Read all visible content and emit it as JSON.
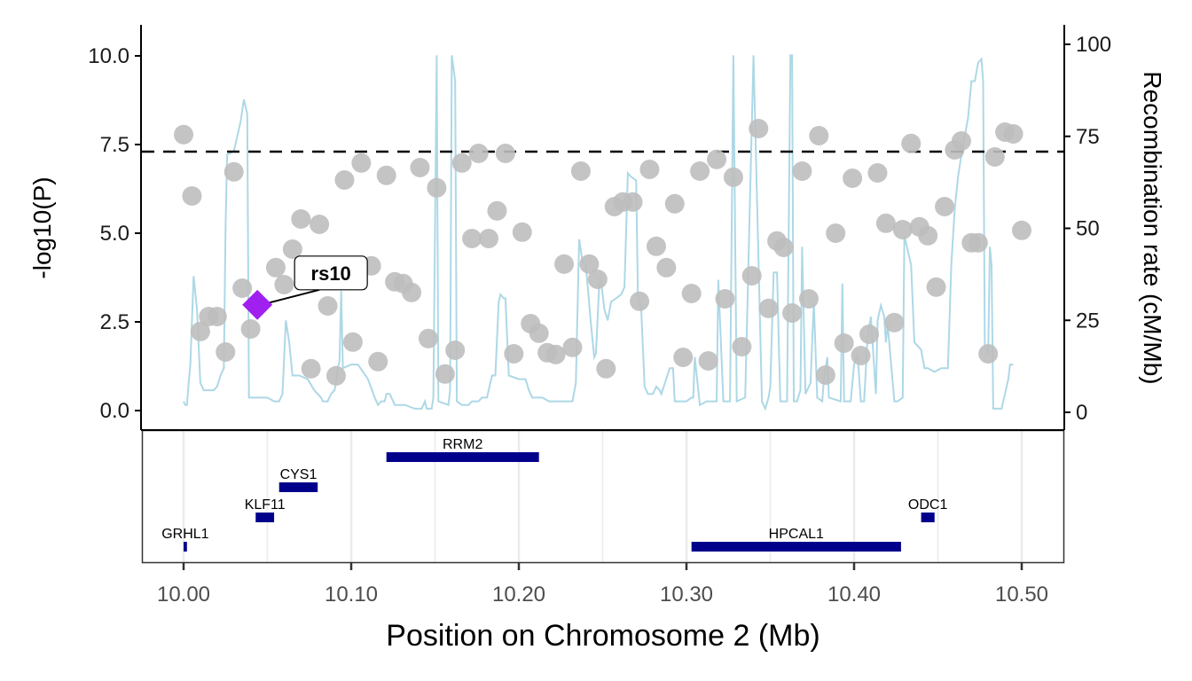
{
  "chart_data": {
    "type": "scatter",
    "title": "",
    "xlabel": "Position on Chromosome 2 (Mb)",
    "ylabel": "-log10(P)",
    "y2label": "Recombination rate (cM/Mb)",
    "xlim": [
      9.975,
      10.525
    ],
    "ylim": [
      -0.45,
      10.85
    ],
    "y2lim": [
      -4.5,
      104.5
    ],
    "x_ticks": [
      10.0,
      10.1,
      10.2,
      10.3,
      10.4,
      10.5
    ],
    "x_tick_labels": [
      "10.00",
      "10.10",
      "10.20",
      "10.30",
      "10.40",
      "10.50"
    ],
    "y_ticks": [
      0.0,
      2.5,
      5.0,
      7.5,
      10.0
    ],
    "y_tick_labels": [
      "0.0",
      "2.5",
      "5.0",
      "7.5",
      "10.0"
    ],
    "y2_ticks": [
      0,
      25,
      50,
      75,
      100
    ],
    "y2_tick_labels": [
      "0",
      "25",
      "50",
      "75",
      "100"
    ],
    "significance_threshold": 7.3,
    "colors": {
      "points": "#bebebe",
      "lead_snp": "#a020f0",
      "recombination": "#add8e6",
      "genes": "#00008b",
      "threshold": "#000000"
    },
    "lead_snp": {
      "label": "rs10",
      "position": 10.044,
      "logp": 2.98
    },
    "points": [
      [
        10.0,
        7.78
      ],
      [
        10.005,
        6.05
      ],
      [
        10.01,
        2.23
      ],
      [
        10.015,
        2.65
      ],
      [
        10.02,
        2.65
      ],
      [
        10.025,
        1.65
      ],
      [
        10.03,
        6.73
      ],
      [
        10.035,
        3.45
      ],
      [
        10.04,
        2.3
      ],
      [
        10.055,
        4.03
      ],
      [
        10.06,
        3.55
      ],
      [
        10.065,
        4.55
      ],
      [
        10.07,
        5.4
      ],
      [
        10.076,
        1.18
      ],
      [
        10.081,
        5.25
      ],
      [
        10.086,
        2.95
      ],
      [
        10.091,
        0.98
      ],
      [
        10.096,
        6.5
      ],
      [
        10.101,
        1.93
      ],
      [
        10.106,
        6.98
      ],
      [
        10.112,
        4.08
      ],
      [
        10.116,
        1.38
      ],
      [
        10.121,
        6.63
      ],
      [
        10.126,
        3.63
      ],
      [
        10.131,
        3.58
      ],
      [
        10.136,
        3.33
      ],
      [
        10.141,
        6.85
      ],
      [
        10.146,
        2.03
      ],
      [
        10.151,
        6.28
      ],
      [
        10.156,
        1.03
      ],
      [
        10.162,
        1.7
      ],
      [
        10.166,
        6.98
      ],
      [
        10.172,
        4.85
      ],
      [
        10.176,
        7.25
      ],
      [
        10.182,
        4.85
      ],
      [
        10.187,
        5.63
      ],
      [
        10.192,
        7.25
      ],
      [
        10.197,
        1.6
      ],
      [
        10.202,
        5.03
      ],
      [
        10.207,
        2.45
      ],
      [
        10.212,
        2.18
      ],
      [
        10.217,
        1.63
      ],
      [
        10.222,
        1.58
      ],
      [
        10.227,
        4.13
      ],
      [
        10.232,
        1.78
      ],
      [
        10.237,
        6.75
      ],
      [
        10.242,
        4.13
      ],
      [
        10.247,
        3.7
      ],
      [
        10.252,
        1.18
      ],
      [
        10.257,
        5.75
      ],
      [
        10.262,
        5.88
      ],
      [
        10.268,
        5.88
      ],
      [
        10.272,
        3.08
      ],
      [
        10.278,
        6.8
      ],
      [
        10.282,
        4.63
      ],
      [
        10.288,
        4.03
      ],
      [
        10.293,
        5.83
      ],
      [
        10.298,
        1.5
      ],
      [
        10.303,
        3.3
      ],
      [
        10.308,
        6.75
      ],
      [
        10.313,
        1.4
      ],
      [
        10.318,
        7.08
      ],
      [
        10.323,
        3.15
      ],
      [
        10.328,
        6.58
      ],
      [
        10.333,
        1.8
      ],
      [
        10.339,
        3.8
      ],
      [
        10.343,
        7.95
      ],
      [
        10.349,
        2.88
      ],
      [
        10.354,
        4.78
      ],
      [
        10.358,
        4.6
      ],
      [
        10.363,
        2.75
      ],
      [
        10.369,
        6.75
      ],
      [
        10.373,
        3.15
      ],
      [
        10.379,
        7.75
      ],
      [
        10.383,
        1.0
      ],
      [
        10.389,
        5.0
      ],
      [
        10.394,
        1.9
      ],
      [
        10.399,
        6.55
      ],
      [
        10.404,
        1.55
      ],
      [
        10.409,
        2.15
      ],
      [
        10.414,
        6.7
      ],
      [
        10.419,
        5.28
      ],
      [
        10.424,
        2.48
      ],
      [
        10.429,
        5.1
      ],
      [
        10.434,
        7.53
      ],
      [
        10.439,
        5.18
      ],
      [
        10.444,
        4.93
      ],
      [
        10.449,
        3.48
      ],
      [
        10.454,
        5.75
      ],
      [
        10.46,
        7.35
      ],
      [
        10.464,
        7.6
      ],
      [
        10.47,
        4.73
      ],
      [
        10.474,
        4.73
      ],
      [
        10.48,
        1.6
      ],
      [
        10.484,
        7.15
      ],
      [
        10.49,
        7.85
      ],
      [
        10.495,
        7.8
      ],
      [
        10.5,
        5.08
      ]
    ],
    "recombination": [
      [
        10.0,
        3
      ],
      [
        10.001,
        2
      ],
      [
        10.002,
        2
      ],
      [
        10.003,
        8
      ],
      [
        10.004,
        13
      ],
      [
        10.006,
        37
      ],
      [
        10.008,
        28
      ],
      [
        10.01,
        8
      ],
      [
        10.012,
        6
      ],
      [
        10.018,
        6
      ],
      [
        10.02,
        7
      ],
      [
        10.022,
        10
      ],
      [
        10.024,
        12
      ],
      [
        10.025,
        50
      ],
      [
        10.026,
        70
      ],
      [
        10.03,
        71
      ],
      [
        10.034,
        79
      ],
      [
        10.036,
        85
      ],
      [
        10.038,
        81
      ],
      [
        10.039,
        4
      ],
      [
        10.045,
        4
      ],
      [
        10.05,
        4
      ],
      [
        10.054,
        3
      ],
      [
        10.057,
        3
      ],
      [
        10.059,
        5
      ],
      [
        10.061,
        25
      ],
      [
        10.063,
        19
      ],
      [
        10.065,
        10
      ],
      [
        10.069,
        10
      ],
      [
        10.074,
        9
      ],
      [
        10.078,
        6
      ],
      [
        10.082,
        4
      ],
      [
        10.083,
        3
      ],
      [
        10.086,
        3
      ],
      [
        10.088,
        5
      ],
      [
        10.09,
        6
      ],
      [
        10.091,
        8
      ],
      [
        10.092,
        12
      ],
      [
        10.093,
        14
      ],
      [
        10.094,
        33
      ],
      [
        10.095,
        12
      ],
      [
        10.1,
        13
      ],
      [
        10.104,
        13
      ],
      [
        10.11,
        9
      ],
      [
        10.114,
        4
      ],
      [
        10.116,
        2
      ],
      [
        10.118,
        3
      ],
      [
        10.12,
        3
      ],
      [
        10.121,
        5
      ],
      [
        10.123,
        5
      ],
      [
        10.126,
        2
      ],
      [
        10.132,
        2
      ],
      [
        10.138,
        1
      ],
      [
        10.14,
        1
      ],
      [
        10.142,
        1
      ],
      [
        10.144,
        3
      ],
      [
        10.145,
        1
      ],
      [
        10.148,
        1
      ],
      [
        10.149,
        4
      ],
      [
        10.15,
        50
      ],
      [
        10.151,
        97
      ],
      [
        10.152,
        3
      ],
      [
        10.158,
        2
      ],
      [
        10.159,
        6
      ],
      [
        10.16,
        97
      ],
      [
        10.162,
        90
      ],
      [
        10.163,
        3
      ],
      [
        10.166,
        2
      ],
      [
        10.17,
        2
      ],
      [
        10.172,
        3
      ],
      [
        10.176,
        3
      ],
      [
        10.178,
        4
      ],
      [
        10.181,
        4
      ],
      [
        10.184,
        10
      ],
      [
        10.186,
        10
      ],
      [
        10.188,
        30
      ],
      [
        10.189,
        32
      ],
      [
        10.191,
        31
      ],
      [
        10.192,
        31
      ],
      [
        10.194,
        10
      ],
      [
        10.2,
        9
      ],
      [
        10.204,
        9
      ],
      [
        10.206,
        6
      ],
      [
        10.208,
        4
      ],
      [
        10.214,
        4
      ],
      [
        10.218,
        3
      ],
      [
        10.222,
        3
      ],
      [
        10.226,
        3
      ],
      [
        10.23,
        3
      ],
      [
        10.232,
        3
      ],
      [
        10.234,
        8
      ],
      [
        10.236,
        47
      ],
      [
        10.238,
        41
      ],
      [
        10.24,
        40
      ],
      [
        10.243,
        24
      ],
      [
        10.245,
        15
      ],
      [
        10.246,
        16
      ],
      [
        10.248,
        35
      ],
      [
        10.249,
        36
      ],
      [
        10.251,
        28
      ],
      [
        10.253,
        25
      ],
      [
        10.255,
        30
      ],
      [
        10.258,
        31
      ],
      [
        10.261,
        32
      ],
      [
        10.263,
        34
      ],
      [
        10.265,
        65
      ],
      [
        10.267,
        64
      ],
      [
        10.27,
        63
      ],
      [
        10.271,
        32
      ],
      [
        10.273,
        28
      ],
      [
        10.275,
        7
      ],
      [
        10.277,
        5
      ],
      [
        10.28,
        5
      ],
      [
        10.282,
        7
      ],
      [
        10.284,
        6
      ],
      [
        10.285,
        5
      ],
      [
        10.29,
        12
      ],
      [
        10.292,
        12
      ],
      [
        10.293,
        3
      ],
      [
        10.3,
        3
      ],
      [
        10.303,
        4
      ],
      [
        10.304,
        4
      ],
      [
        10.305,
        15
      ],
      [
        10.308,
        2
      ],
      [
        10.312,
        3
      ],
      [
        10.318,
        3
      ],
      [
        10.319,
        36
      ],
      [
        10.322,
        3
      ],
      [
        10.326,
        3
      ],
      [
        10.328,
        97
      ],
      [
        10.33,
        3
      ],
      [
        10.335,
        4
      ],
      [
        10.34,
        97
      ],
      [
        10.345,
        3
      ],
      [
        10.347,
        1
      ],
      [
        10.349,
        4
      ],
      [
        10.35,
        7
      ],
      [
        10.352,
        38
      ],
      [
        10.354,
        38
      ],
      [
        10.356,
        3
      ],
      [
        10.36,
        3
      ],
      [
        10.362,
        97
      ],
      [
        10.363,
        97
      ],
      [
        10.364,
        3
      ],
      [
        10.366,
        3
      ],
      [
        10.368,
        6
      ],
      [
        10.369,
        45
      ],
      [
        10.371,
        5
      ],
      [
        10.374,
        8
      ],
      [
        10.376,
        30
      ],
      [
        10.378,
        4
      ],
      [
        10.381,
        3
      ],
      [
        10.382,
        9
      ],
      [
        10.384,
        15
      ],
      [
        10.385,
        4
      ],
      [
        10.392,
        3
      ],
      [
        10.393,
        35
      ],
      [
        10.394,
        3
      ],
      [
        10.398,
        3
      ],
      [
        10.4,
        13
      ],
      [
        10.402,
        16
      ],
      [
        10.404,
        3
      ],
      [
        10.406,
        3
      ],
      [
        10.408,
        20
      ],
      [
        10.41,
        26
      ],
      [
        10.413,
        5
      ],
      [
        10.414,
        25
      ],
      [
        10.416,
        29
      ],
      [
        10.418,
        26
      ],
      [
        10.419,
        19
      ],
      [
        10.42,
        24
      ],
      [
        10.424,
        3
      ],
      [
        10.426,
        3
      ],
      [
        10.429,
        4
      ],
      [
        10.43,
        48
      ],
      [
        10.434,
        40
      ],
      [
        10.436,
        19
      ],
      [
        10.44,
        17
      ],
      [
        10.442,
        12
      ],
      [
        10.444,
        12
      ],
      [
        10.448,
        11
      ],
      [
        10.452,
        12
      ],
      [
        10.454,
        12
      ],
      [
        10.456,
        12
      ],
      [
        10.458,
        40
      ],
      [
        10.46,
        55
      ],
      [
        10.462,
        64
      ],
      [
        10.464,
        70
      ],
      [
        10.466,
        75
      ],
      [
        10.468,
        80
      ],
      [
        10.47,
        90
      ],
      [
        10.472,
        90
      ],
      [
        10.474,
        95
      ],
      [
        10.476,
        96
      ],
      [
        10.477,
        90
      ],
      [
        10.478,
        18
      ],
      [
        10.48,
        16
      ],
      [
        10.481,
        45
      ],
      [
        10.482,
        40
      ],
      [
        10.483,
        1
      ],
      [
        10.488,
        1
      ],
      [
        10.49,
        5
      ],
      [
        10.492,
        9
      ],
      [
        10.493,
        13
      ],
      [
        10.495,
        13
      ]
    ],
    "genes": [
      {
        "name": "GRHL1",
        "start": 10.0,
        "end": 10.002,
        "row": 0
      },
      {
        "name": "KLF11",
        "start": 10.043,
        "end": 10.054,
        "row": 1
      },
      {
        "name": "CYS1",
        "start": 10.057,
        "end": 10.08,
        "row": 2
      },
      {
        "name": "RRM2",
        "start": 10.121,
        "end": 10.212,
        "row": 3
      },
      {
        "name": "HPCAL1",
        "start": 10.303,
        "end": 10.428,
        "row": 0
      },
      {
        "name": "ODC1",
        "start": 10.44,
        "end": 10.448,
        "row": 1
      }
    ]
  }
}
